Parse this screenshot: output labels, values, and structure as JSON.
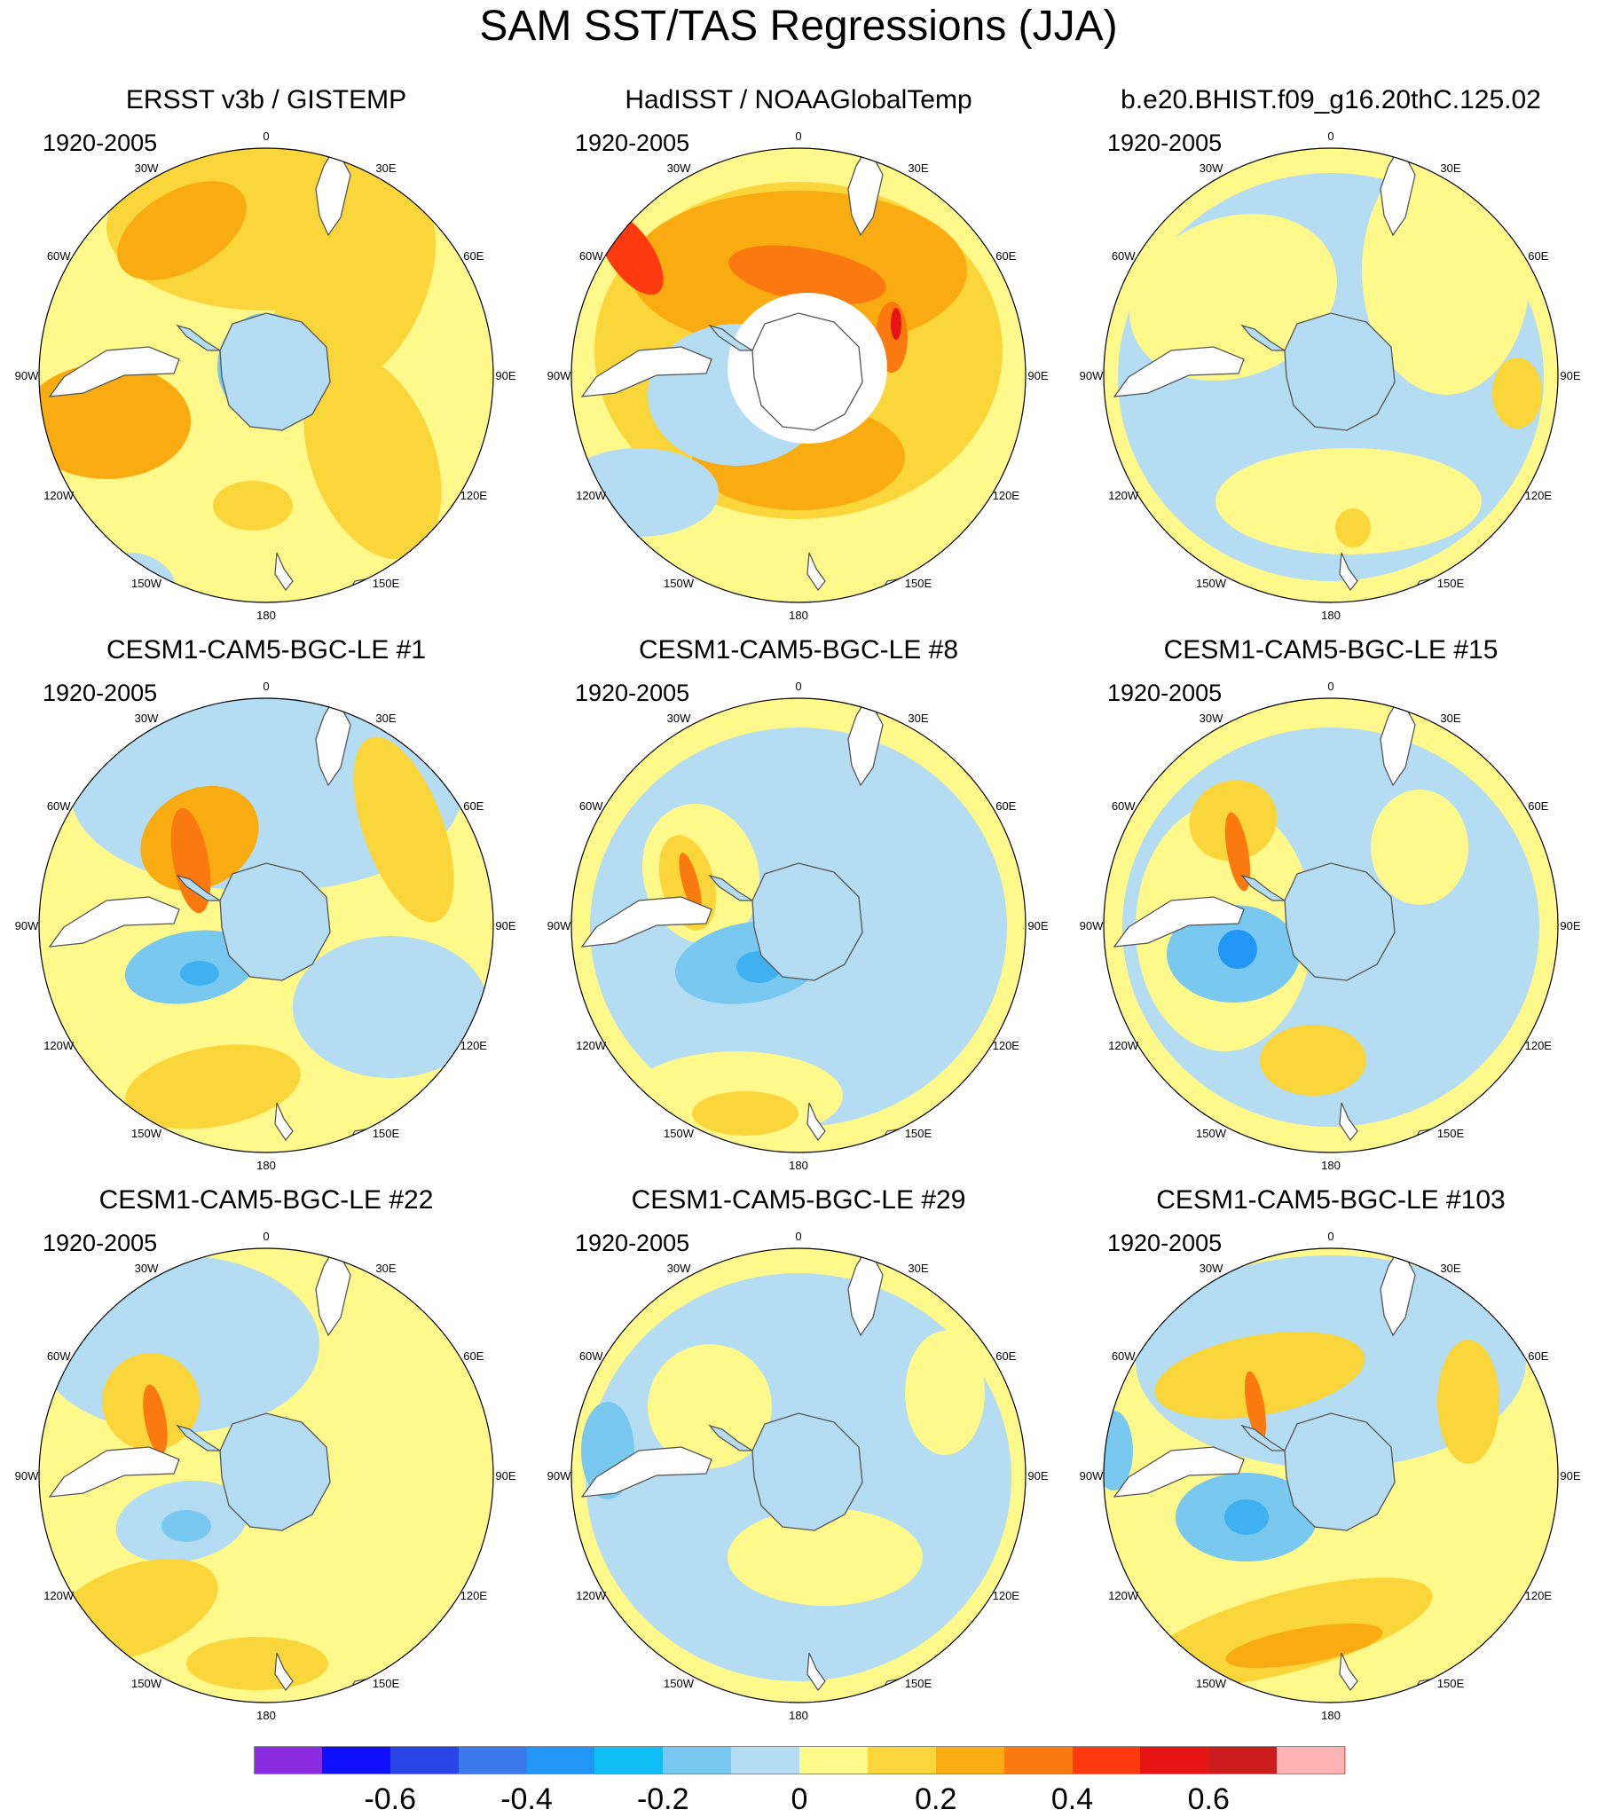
{
  "title": "SAM SST/TAS Regressions (JJA)",
  "lon_labels": [
    "0",
    "30E",
    "60E",
    "90E",
    "120E",
    "150E",
    "180",
    "150W",
    "120W",
    "90W",
    "60W",
    "30W"
  ],
  "panels": [
    {
      "title": "ERSST v3b / GISTEMP",
      "period": "1920-2005"
    },
    {
      "title": "HadISST / NOAAGlobalTemp",
      "period": "1920-2005"
    },
    {
      "title": "b.e20.BHIST.f09_g16.20thC.125.02",
      "period": "1920-2005"
    },
    {
      "title": "CESM1-CAM5-BGC-LE #1",
      "period": "1920-2005"
    },
    {
      "title": "CESM1-CAM5-BGC-LE #8",
      "period": "1920-2005"
    },
    {
      "title": "CESM1-CAM5-BGC-LE #15",
      "period": "1920-2005"
    },
    {
      "title": "CESM1-CAM5-BGC-LE #22",
      "period": "1920-2005"
    },
    {
      "title": "CESM1-CAM5-BGC-LE #29",
      "period": "1920-2005"
    },
    {
      "title": "CESM1-CAM5-BGC-LE #103",
      "period": "1920-2005"
    }
  ],
  "colorbar": {
    "colors": [
      "#8a2be2",
      "#1010ff",
      "#2a45e6",
      "#3a78ec",
      "#2196f5",
      "#0fbef5",
      "#78c8f0",
      "#b4dcf2",
      "#fff88a",
      "#fbd63a",
      "#f9ab12",
      "#fa7a10",
      "#ff3a10",
      "#e61414",
      "#cc1c1c",
      "#ffb3b3"
    ],
    "tick_values": [
      -0.6,
      -0.4,
      -0.2,
      0,
      0.2,
      0.4,
      0.6
    ],
    "tick_labels": [
      "-0.6",
      "-0.4",
      "-0.2",
      "0",
      "0.2",
      "0.4",
      "0.6"
    ],
    "levels": [
      -0.7,
      -0.6,
      -0.5,
      -0.4,
      -0.3,
      -0.2,
      -0.1,
      0,
      0.1,
      0.2,
      0.3,
      0.4,
      0.5,
      0.6,
      0.7
    ]
  }
}
